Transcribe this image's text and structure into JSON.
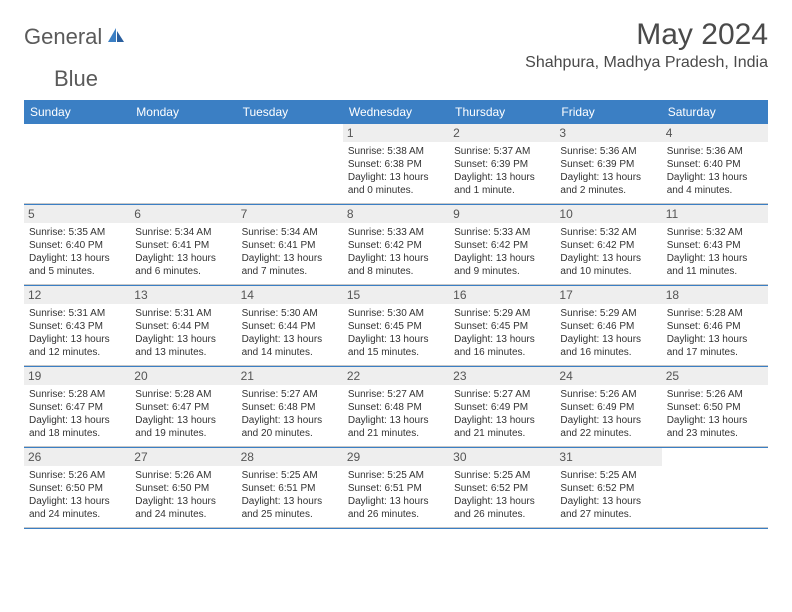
{
  "logo": {
    "text1": "General",
    "text2": "Blue"
  },
  "title": "May 2024",
  "location": "Shahpura, Madhya Pradesh, India",
  "colors": {
    "header_bg": "#3b7fc4",
    "header_text": "#ffffff",
    "daynum_bg": "#eeeeee",
    "border": "#3b7fc4",
    "text": "#333333"
  },
  "dayNames": [
    "Sunday",
    "Monday",
    "Tuesday",
    "Wednesday",
    "Thursday",
    "Friday",
    "Saturday"
  ],
  "weeks": [
    [
      null,
      null,
      null,
      {
        "n": "1",
        "sunrise": "5:38 AM",
        "sunset": "6:38 PM",
        "daylight": "13 hours and 0 minutes."
      },
      {
        "n": "2",
        "sunrise": "5:37 AM",
        "sunset": "6:39 PM",
        "daylight": "13 hours and 1 minute."
      },
      {
        "n": "3",
        "sunrise": "5:36 AM",
        "sunset": "6:39 PM",
        "daylight": "13 hours and 2 minutes."
      },
      {
        "n": "4",
        "sunrise": "5:36 AM",
        "sunset": "6:40 PM",
        "daylight": "13 hours and 4 minutes."
      }
    ],
    [
      {
        "n": "5",
        "sunrise": "5:35 AM",
        "sunset": "6:40 PM",
        "daylight": "13 hours and 5 minutes."
      },
      {
        "n": "6",
        "sunrise": "5:34 AM",
        "sunset": "6:41 PM",
        "daylight": "13 hours and 6 minutes."
      },
      {
        "n": "7",
        "sunrise": "5:34 AM",
        "sunset": "6:41 PM",
        "daylight": "13 hours and 7 minutes."
      },
      {
        "n": "8",
        "sunrise": "5:33 AM",
        "sunset": "6:42 PM",
        "daylight": "13 hours and 8 minutes."
      },
      {
        "n": "9",
        "sunrise": "5:33 AM",
        "sunset": "6:42 PM",
        "daylight": "13 hours and 9 minutes."
      },
      {
        "n": "10",
        "sunrise": "5:32 AM",
        "sunset": "6:42 PM",
        "daylight": "13 hours and 10 minutes."
      },
      {
        "n": "11",
        "sunrise": "5:32 AM",
        "sunset": "6:43 PM",
        "daylight": "13 hours and 11 minutes."
      }
    ],
    [
      {
        "n": "12",
        "sunrise": "5:31 AM",
        "sunset": "6:43 PM",
        "daylight": "13 hours and 12 minutes."
      },
      {
        "n": "13",
        "sunrise": "5:31 AM",
        "sunset": "6:44 PM",
        "daylight": "13 hours and 13 minutes."
      },
      {
        "n": "14",
        "sunrise": "5:30 AM",
        "sunset": "6:44 PM",
        "daylight": "13 hours and 14 minutes."
      },
      {
        "n": "15",
        "sunrise": "5:30 AM",
        "sunset": "6:45 PM",
        "daylight": "13 hours and 15 minutes."
      },
      {
        "n": "16",
        "sunrise": "5:29 AM",
        "sunset": "6:45 PM",
        "daylight": "13 hours and 16 minutes."
      },
      {
        "n": "17",
        "sunrise": "5:29 AM",
        "sunset": "6:46 PM",
        "daylight": "13 hours and 16 minutes."
      },
      {
        "n": "18",
        "sunrise": "5:28 AM",
        "sunset": "6:46 PM",
        "daylight": "13 hours and 17 minutes."
      }
    ],
    [
      {
        "n": "19",
        "sunrise": "5:28 AM",
        "sunset": "6:47 PM",
        "daylight": "13 hours and 18 minutes."
      },
      {
        "n": "20",
        "sunrise": "5:28 AM",
        "sunset": "6:47 PM",
        "daylight": "13 hours and 19 minutes."
      },
      {
        "n": "21",
        "sunrise": "5:27 AM",
        "sunset": "6:48 PM",
        "daylight": "13 hours and 20 minutes."
      },
      {
        "n": "22",
        "sunrise": "5:27 AM",
        "sunset": "6:48 PM",
        "daylight": "13 hours and 21 minutes."
      },
      {
        "n": "23",
        "sunrise": "5:27 AM",
        "sunset": "6:49 PM",
        "daylight": "13 hours and 21 minutes."
      },
      {
        "n": "24",
        "sunrise": "5:26 AM",
        "sunset": "6:49 PM",
        "daylight": "13 hours and 22 minutes."
      },
      {
        "n": "25",
        "sunrise": "5:26 AM",
        "sunset": "6:50 PM",
        "daylight": "13 hours and 23 minutes."
      }
    ],
    [
      {
        "n": "26",
        "sunrise": "5:26 AM",
        "sunset": "6:50 PM",
        "daylight": "13 hours and 24 minutes."
      },
      {
        "n": "27",
        "sunrise": "5:26 AM",
        "sunset": "6:50 PM",
        "daylight": "13 hours and 24 minutes."
      },
      {
        "n": "28",
        "sunrise": "5:25 AM",
        "sunset": "6:51 PM",
        "daylight": "13 hours and 25 minutes."
      },
      {
        "n": "29",
        "sunrise": "5:25 AM",
        "sunset": "6:51 PM",
        "daylight": "13 hours and 26 minutes."
      },
      {
        "n": "30",
        "sunrise": "5:25 AM",
        "sunset": "6:52 PM",
        "daylight": "13 hours and 26 minutes."
      },
      {
        "n": "31",
        "sunrise": "5:25 AM",
        "sunset": "6:52 PM",
        "daylight": "13 hours and 27 minutes."
      },
      null
    ]
  ],
  "labels": {
    "sunrise": "Sunrise: ",
    "sunset": "Sunset: ",
    "daylight": "Daylight: "
  }
}
